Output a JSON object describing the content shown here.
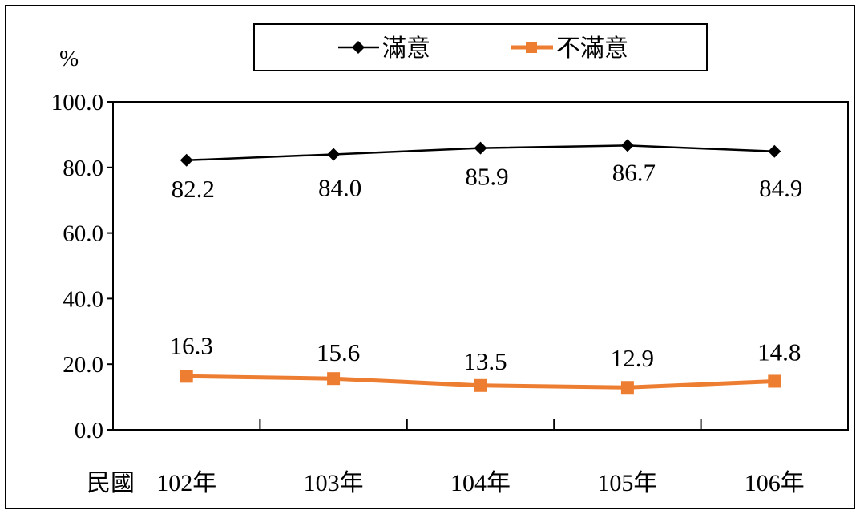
{
  "chart_data": {
    "type": "line",
    "categories": [
      "102年",
      "103年",
      "104年",
      "105年",
      "106年"
    ],
    "x_prefix_label": "民國",
    "ylabel": "%",
    "ylim": [
      0,
      100
    ],
    "yticks": [
      "0.0",
      "20.0",
      "40.0",
      "60.0",
      "80.0",
      "100.0"
    ],
    "ytick_values": [
      0,
      20,
      40,
      60,
      80,
      100
    ],
    "grid": false,
    "legend_position": "top",
    "series": [
      {
        "name": "滿意",
        "values": [
          82.2,
          84.0,
          85.9,
          86.7,
          84.9
        ],
        "labels": [
          "82.2",
          "84.0",
          "85.9",
          "86.7",
          "84.9"
        ],
        "color": "#000000",
        "marker": "diamond"
      },
      {
        "name": "不滿意",
        "values": [
          16.3,
          15.6,
          13.5,
          12.9,
          14.8
        ],
        "labels": [
          "16.3",
          "15.6",
          "13.5",
          "12.9",
          "14.8"
        ],
        "color": "#ED7D31",
        "marker": "square"
      }
    ]
  }
}
